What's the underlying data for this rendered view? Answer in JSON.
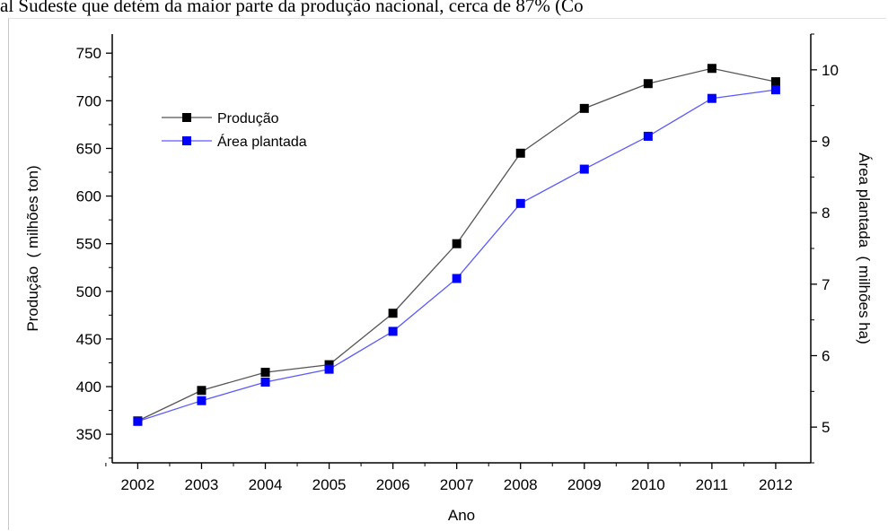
{
  "header": {
    "text": "al Sudeste que detém da maior parte da produção nacional, cerca de 87% (Co"
  },
  "chart_data": {
    "type": "line",
    "x": [
      2002,
      2003,
      2004,
      2005,
      2006,
      2007,
      2008,
      2009,
      2010,
      2011,
      2012
    ],
    "xlabel": "Ano",
    "ylabel_left": "Produção  ( milhões ton)",
    "ylabel_right": "Área plantada  ( milhões ha)",
    "ylim_left": [
      320,
      770
    ],
    "ylim_right": [
      4.5,
      10.5
    ],
    "yticks_left": [
      350,
      400,
      450,
      500,
      550,
      600,
      650,
      700,
      750
    ],
    "yticks_right": [
      5,
      6,
      7,
      8,
      9,
      10
    ],
    "legend_position": "top-left",
    "grid": false,
    "series": [
      {
        "name": "Produção",
        "axis": "left",
        "color": "#000000",
        "line_color": "#555555",
        "marker": "square",
        "values": [
          364,
          396,
          415,
          423,
          477,
          550,
          645,
          692,
          718,
          734,
          720
        ]
      },
      {
        "name": "Área plantada",
        "axis": "right",
        "color": "#0000ff",
        "line_color": "#5a5aff",
        "marker": "square",
        "values": [
          5.08,
          5.37,
          5.63,
          5.81,
          6.34,
          7.08,
          8.13,
          8.61,
          9.07,
          9.6,
          9.72
        ]
      }
    ]
  }
}
